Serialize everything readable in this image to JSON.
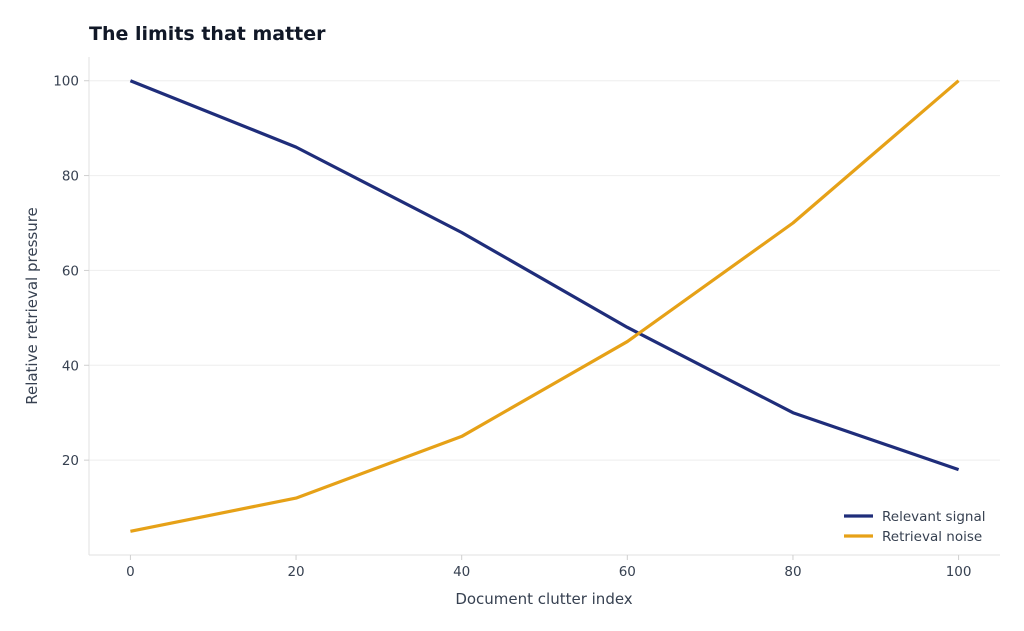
{
  "chart_data": {
    "type": "line",
    "title": "The limits that matter",
    "xlabel": "Document clutter index",
    "ylabel": "Relative retrieval pressure",
    "x": [
      0,
      20,
      40,
      60,
      80,
      100
    ],
    "xlim": [
      -5,
      105
    ],
    "ylim": [
      0,
      105
    ],
    "xticks": [
      0,
      20,
      40,
      60,
      80,
      100
    ],
    "yticks": [
      20,
      40,
      60,
      80,
      100
    ],
    "grid": "horizontal",
    "legend_position": "lower-right",
    "series": [
      {
        "name": "Relevant signal",
        "color": "#1f2d7a",
        "values": [
          100,
          86,
          68,
          48,
          30,
          18
        ]
      },
      {
        "name": "Retrieval noise",
        "color": "#e6a117",
        "values": [
          5,
          12,
          25,
          45,
          70,
          100
        ]
      }
    ]
  }
}
